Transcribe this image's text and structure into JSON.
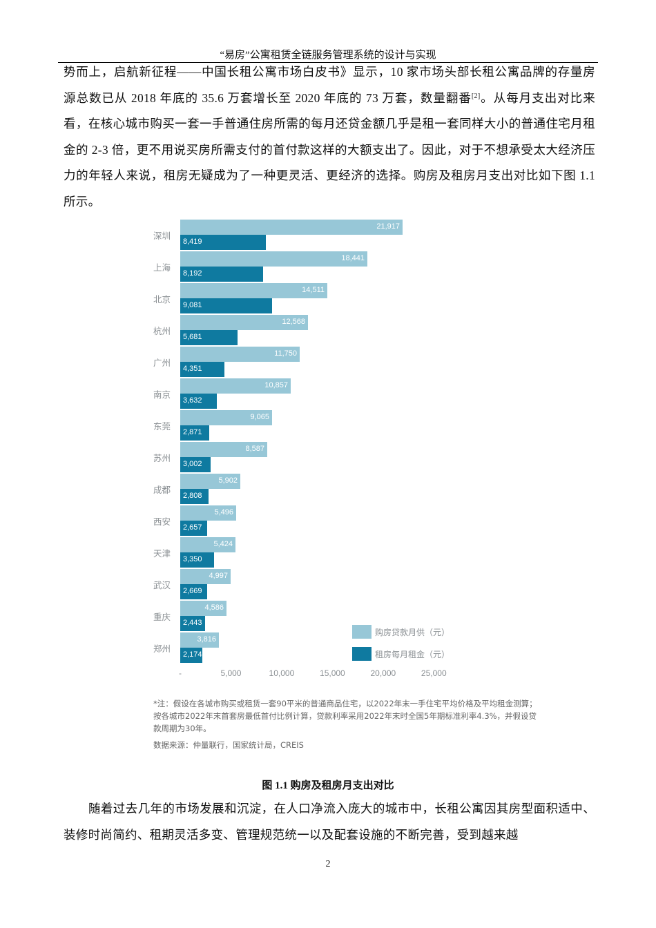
{
  "header": {
    "title": "“易房”公寓租赁全链服务管理系统的设计与实现"
  },
  "body": {
    "para1_a": "势而上，启航新征程——中国长租公寓市场白皮书》显示，10 家市场头部长租公寓品牌的存量房源总数已从 2018 年底的 35.6 万套增长至 2020 年底的 73 万套，数量翻番",
    "para1_ref": "[2]",
    "para1_b": "。从每月支出对比来看，在核心城市购买一套一手普通住房所需的每月还贷金额几乎是租一套同样大小的普通住宅月租金的 2-3 倍，更不用说买房所需支付的首付款这样的大额支出了。因此，对于不想承受太大经济压力的年轻人来说，租房无疑成为了一种更灵活、更经济的选择。购房及租房月支出对比如下图 1.1 所示。",
    "para2": "随着过去几年的市场发展和沉淀，在人口净流入庞大的城市中，长租公寓因其房型面积适中、装修时尚简约、租期灵活多变、管理规范统一以及配套设施的不断完善，受到越来越"
  },
  "figure": {
    "caption": "图 1.1 购房及租房月支出对比",
    "note": "*注：假设在各城市购买或租赁一套90平米的普通商品住宅，以2022年末一手住宅平均价格及平均租金测算；按各城市2022年末首套房最低首付比例计算，贷款利率采用2022年末时全国5年期标准利率4.3%，并假设贷款周期为30年。",
    "source": "数据来源：仲量联行，国家统计局，CREIS"
  },
  "chart_data": {
    "type": "bar",
    "orientation": "horizontal",
    "title": "",
    "xlabel": "",
    "ylabel": "",
    "xlim": [
      0,
      25000
    ],
    "grid": false,
    "legend_position": "lower right",
    "x_ticks": [
      "-",
      "5,000",
      "10,000",
      "15,000",
      "20,000",
      "25,000"
    ],
    "categories": [
      "深圳",
      "上海",
      "北京",
      "杭州",
      "广州",
      "南京",
      "东莞",
      "苏州",
      "成都",
      "西安",
      "天津",
      "武汉",
      "重庆",
      "郑州"
    ],
    "series": [
      {
        "name": "购房贷款月供（元）",
        "color": "#97c7d7",
        "values": [
          21917,
          18441,
          14511,
          12568,
          11750,
          10857,
          9065,
          8587,
          5902,
          5496,
          5424,
          4997,
          4586,
          3816
        ],
        "labels": [
          "21,917",
          "18,441",
          "14,511",
          "12,568",
          "11,750",
          "10,857",
          "9,065",
          "8,587",
          "5,902",
          "5,496",
          "5,424",
          "4,997",
          "4,586",
          "3,816"
        ]
      },
      {
        "name": "租房每月租金（元）",
        "color": "#0f7aa0",
        "values": [
          8419,
          8192,
          9081,
          5681,
          4351,
          3632,
          2871,
          3002,
          2808,
          2657,
          3350,
          2669,
          2443,
          2174
        ],
        "labels": [
          "8,419",
          "8,192",
          "9,081",
          "5,681",
          "4,351",
          "3,632",
          "2,871",
          "3,002",
          "2,808",
          "2,657",
          "3,350",
          "2,669",
          "2,443",
          "2,174"
        ]
      }
    ]
  },
  "page": {
    "number": "2"
  }
}
